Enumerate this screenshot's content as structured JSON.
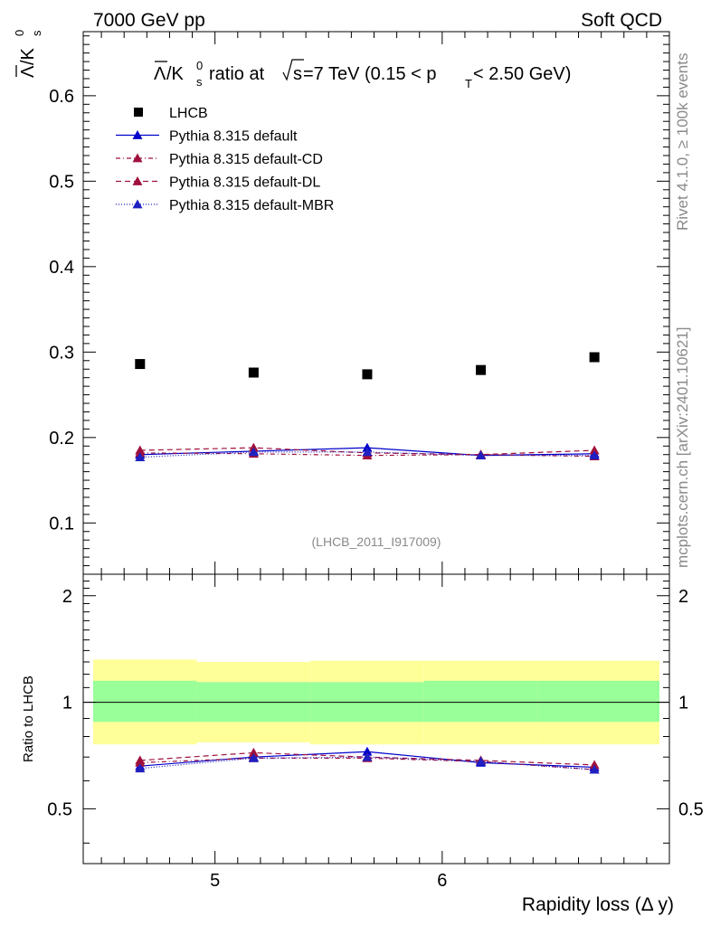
{
  "header": {
    "left_label": "7000 GeV pp",
    "right_label": "Soft QCD"
  },
  "side_labels": {
    "rivet": "Rivet 4.1.0, ≥ 100k events",
    "source": "mcplots.cern.ch [arXiv:2401.10621]"
  },
  "chart_data": {
    "type": "line",
    "title": "Λ̄/K⁰s ratio at √s=7 TeV (0.15 < pT < 2.50 GeV)",
    "title_parts": {
      "pre": "ratio at ",
      "sqrt_arg": "s",
      "mid": "=7 TeV (0.15 < p",
      "sub": "T",
      "post": " < 2.50 GeV)"
    },
    "ylabel": {
      "base": "Λ",
      "k": "/K",
      "sup": "0",
      "sub": "s"
    },
    "ratio_ylabel": "Ratio to LHCB",
    "xlabel": "Rapidity loss (Δ y)",
    "analysis_id": "(LHCB_2011_I917009)",
    "xlim": [
      4.42,
      7.0
    ],
    "ylim": [
      0.04,
      0.675
    ],
    "ratio_ylim": [
      0.35,
      2.3
    ],
    "x_ticks": [
      5,
      6
    ],
    "y_ticks": [
      0.1,
      0.2,
      0.3,
      0.4,
      0.5,
      0.6
    ],
    "ratio_y_ticks": [
      0.5,
      1,
      2
    ],
    "x": [
      4.67,
      5.17,
      5.67,
      6.17,
      6.67
    ],
    "data": {
      "name": "LHCB",
      "values": [
        0.286,
        0.276,
        0.274,
        0.279,
        0.294
      ]
    },
    "series": [
      {
        "name": "Pythia 8.315 default",
        "color": "#0000cc",
        "dash": "",
        "values": [
          0.18,
          0.184,
          0.188,
          0.179,
          0.181
        ],
        "ratio": [
          0.66,
          0.7,
          0.725,
          0.675,
          0.655
        ]
      },
      {
        "name": "Pythia 8.315 default-CD",
        "color": "#a0103c",
        "dash": "5,3,1,3",
        "values": [
          0.182,
          0.181,
          0.179,
          0.18,
          0.178
        ],
        "ratio": [
          0.675,
          0.695,
          0.695,
          0.68,
          0.645
        ]
      },
      {
        "name": "Pythia 8.315 default-DL",
        "color": "#a0103c",
        "dash": "6,4",
        "values": [
          0.185,
          0.188,
          0.182,
          0.18,
          0.185
        ],
        "ratio": [
          0.685,
          0.72,
          0.7,
          0.685,
          0.665
        ]
      },
      {
        "name": "Pythia 8.315 default-MBR",
        "color": "#2020c0",
        "dash": "1,2",
        "values": [
          0.177,
          0.183,
          0.183,
          0.179,
          0.179
        ],
        "ratio": [
          0.65,
          0.695,
          0.7,
          0.68,
          0.645
        ]
      }
    ],
    "bands": {
      "edges": [
        4.42,
        4.92,
        5.42,
        5.92,
        6.42,
        7.0
      ],
      "green": [
        [
          0.88,
          1.15
        ],
        [
          0.88,
          1.14
        ],
        [
          0.88,
          1.14
        ],
        [
          0.88,
          1.15
        ],
        [
          0.88,
          1.15
        ]
      ],
      "yellow": [
        [
          0.76,
          1.32
        ],
        [
          0.77,
          1.3
        ],
        [
          0.76,
          1.31
        ],
        [
          0.76,
          1.31
        ],
        [
          0.76,
          1.31
        ]
      ]
    }
  }
}
